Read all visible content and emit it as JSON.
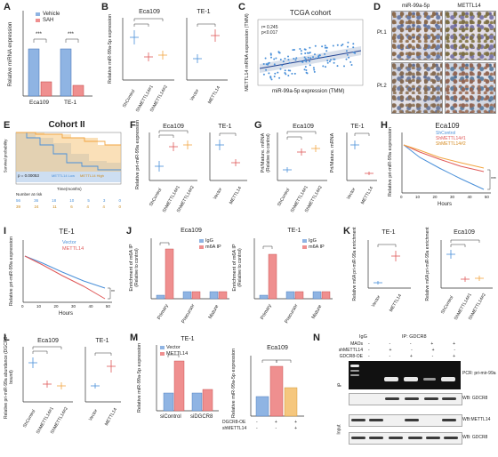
{
  "panels": {
    "A": {
      "label": "A",
      "ylabel": "Relative miRNA expression",
      "legend": [
        "Vehicle",
        "SAH"
      ],
      "categories": [
        "Eca109",
        "TE-1"
      ],
      "sig": "***"
    },
    "B": {
      "label": "B",
      "left_title": "Eca109",
      "right_title": "TE-1",
      "ylabel": "Relative miR-99a-5p expression",
      "left_ticks": [
        "ShControl",
        "ShMETTL14#1",
        "ShMETTL14#2"
      ],
      "right_ticks": [
        "Vector",
        "METTL14"
      ],
      "sig": "**"
    },
    "C": {
      "label": "C",
      "title": "TCGA cohort",
      "stat1": "r= 0.245",
      "stat2": "p<0.017",
      "xlabel": "miR-99a-5p expression (TMM)",
      "ylabel": "METTL14 mRNA expression (TMM)"
    },
    "D": {
      "label": "D",
      "col1": "miR-99a-5p",
      "col2": "METTL14",
      "row1": "Pt.1",
      "row2": "Pt.2"
    },
    "E": {
      "label": "E",
      "title": "Cohort II",
      "ylabel": "Survival probability",
      "xlabel": "Time(months)",
      "pvalue": "p = 0.00053",
      "legend": [
        "METTL14 Low",
        "METTL14 High"
      ],
      "risk_title": "Number at risk",
      "risk_rows": [
        [
          "56",
          "36",
          "18",
          "10",
          "5",
          "3",
          "0"
        ],
        [
          "39",
          "24",
          "11",
          "6",
          "4",
          "4",
          "0"
        ]
      ],
      "xticks": [
        "0",
        "20",
        "40",
        "60",
        "80",
        "100",
        "120"
      ]
    },
    "F": {
      "label": "F",
      "left_title": "Eca109",
      "right_title": "TE-1",
      "ylabel": "Relative pri-miR-99a expression",
      "left_ticks": [
        "ShControl",
        "ShMETTL14#1",
        "ShMETTL14#2"
      ],
      "right_ticks": [
        "Vector",
        "METTL14"
      ],
      "sig": "**"
    },
    "G": {
      "label": "G",
      "left_title": "Eca109",
      "right_title": "TE-1",
      "ylabel": "Pri/Mature. mRNA",
      "ylabel2": "(Relative to control)",
      "left_ticks": [
        "ShControl",
        "ShMETTL14#1",
        "ShMETTL14#2"
      ],
      "right_ticks": [
        "Vector",
        "METTL14"
      ],
      "sig": "***"
    },
    "H": {
      "label": "H",
      "title": "Eca109",
      "ylabel": "Relative pri-miR-99a expression",
      "xlabel": "Hours",
      "legend": [
        "ShControl",
        "ShMETTL14#1",
        "ShMETTL14#2"
      ],
      "xticks": [
        "0",
        "10",
        "20",
        "30",
        "40",
        "50"
      ],
      "sig": "***"
    },
    "I": {
      "label": "I",
      "title": "TE-1",
      "ylabel": "Relative pri-miR-99a expression",
      "xlabel": "Hours",
      "legend": [
        "Vector",
        "METTL14"
      ],
      "xticks": [
        "0",
        "10",
        "20",
        "30",
        "40",
        "50"
      ],
      "sig": "**"
    },
    "J": {
      "label": "J",
      "left_title": "Eca109",
      "right_title": "TE-1",
      "ylabel": "Enrichment of m6A IP",
      "ylabel2": "(Relative to control)",
      "legend": [
        "IgG",
        "m6A IP"
      ],
      "categories": [
        "Primary",
        "Precursor",
        "Mature"
      ],
      "sig": "***"
    },
    "K": {
      "label": "K",
      "left_title": "TE-1",
      "right_title": "Eca109",
      "ylabel": "Relative m6A pri-miR-99a enrichment",
      "left_ticks": [
        "Vector",
        "METTL14"
      ],
      "right_ticks": [
        "ShControl",
        "ShMETTL14#1",
        "ShMETTL14#2"
      ],
      "sig": "***"
    },
    "L": {
      "label": "L",
      "left_title": "Eca109",
      "right_title": "TE-1",
      "ylabel": "Relative pri-miR-99a abundance (DGCR8-bound)",
      "left_ticks": [
        "ShControl",
        "ShMETTL14#1",
        "ShMETTL14#2"
      ],
      "right_ticks": [
        "Vector",
        "METTL14"
      ],
      "sig": "**"
    },
    "M": {
      "label": "M",
      "left_title": "TE-1",
      "right_title": "Eca109",
      "ylabel": "Relative miR-99a-5p expression",
      "legend": [
        "Vector",
        "METTL14"
      ],
      "left_ticks": [
        "siControl",
        "siDGCR8"
      ],
      "rows": [
        "DGCR8-OE",
        "shMETTL14"
      ],
      "row_marks": [
        [
          "-",
          "+",
          "+"
        ],
        [
          "-",
          "-",
          "+"
        ]
      ],
      "sig": "***"
    },
    "N": {
      "label": "N",
      "header_igg": "IgG",
      "header_ip": "IP: GDCR8",
      "conds": [
        "MAOs",
        "shMETTL14",
        "GDCR8-OE"
      ],
      "marks": [
        [
          "-",
          "-",
          "-",
          "+",
          "+"
        ],
        [
          "-",
          "+",
          "-",
          "+",
          "-"
        ],
        [
          "-",
          "-",
          "+",
          "-",
          "+"
        ]
      ],
      "side_ip": "IP",
      "side_input": "Input",
      "blots": [
        "PCR: pri-mir-99a",
        "WB: GDCR8",
        "WB:METTL14",
        "WB: GDCR8"
      ]
    }
  },
  "colors": {
    "blue": "#4a90d9",
    "red": "#e05a5a",
    "orange": "#f2a541",
    "blue_band": "#9bbde6",
    "orange_band": "#f5c77e",
    "bar_blue": "#8fb4e3",
    "bar_red": "#ef8f8f"
  }
}
